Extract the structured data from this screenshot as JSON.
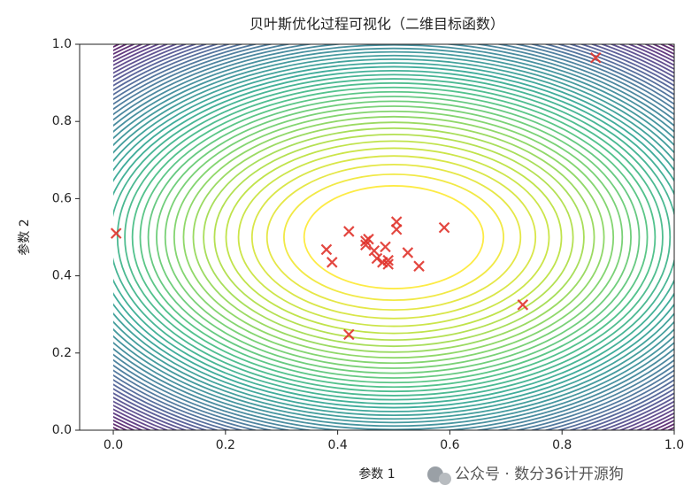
{
  "chart_data": {
    "type": "scatter",
    "title": "贝叶斯优化过程可视化（二维目标函数）",
    "xlabel": "参数 1",
    "ylabel": "参数 2",
    "x": [
      0.005,
      0.86,
      0.42,
      0.73,
      0.38,
      0.39,
      0.42,
      0.45,
      0.45,
      0.455,
      0.465,
      0.47,
      0.48,
      0.485,
      0.49,
      0.49,
      0.505,
      0.505,
      0.525,
      0.545,
      0.59
    ],
    "values": [
      0.51,
      0.965,
      0.248,
      0.325,
      0.468,
      0.435,
      0.515,
      0.49,
      0.48,
      0.495,
      0.465,
      0.445,
      0.435,
      0.475,
      0.43,
      0.44,
      0.54,
      0.52,
      0.46,
      0.425,
      0.525
    ],
    "color": "#e0332b",
    "marker": "x",
    "xlim": [
      -0.06,
      1.0
    ],
    "ylim": [
      0,
      1
    ],
    "xticks": [
      {
        "value": 0,
        "label": "0.0"
      },
      0.2,
      0.4,
      0.6,
      0.8,
      {
        "value": 1,
        "label": "1.0"
      }
    ],
    "yticks": [
      {
        "value": 0,
        "label": "0.0"
      },
      0.2,
      0.4,
      0.6,
      0.8,
      {
        "value": 1,
        "label": "1.0"
      }
    ],
    "grid": false,
    "watermark": "公众号 · 数分36计开源狗"
  }
}
